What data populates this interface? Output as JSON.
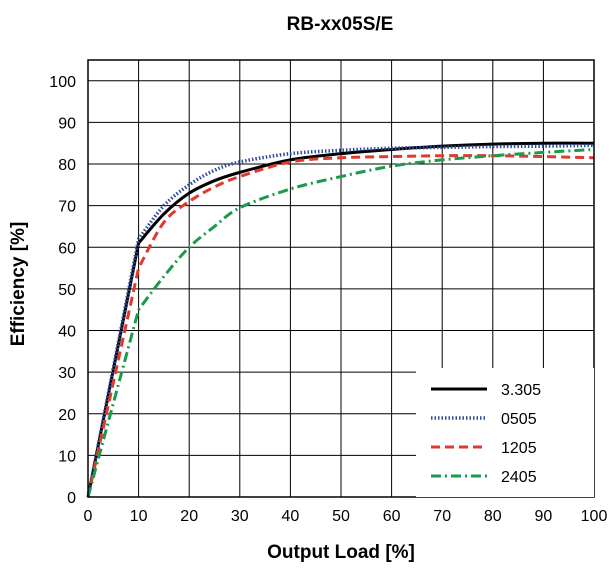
{
  "chart_data": {
    "type": "line",
    "title": "RB-xx05S/E",
    "xlabel": "Output Load [%]",
    "ylabel": "Efficiency [%]",
    "xlim": [
      0,
      100
    ],
    "ylim": [
      0,
      105
    ],
    "xticks": [
      0,
      10,
      20,
      30,
      40,
      50,
      60,
      70,
      80,
      90,
      100
    ],
    "yticks": [
      0,
      10,
      20,
      30,
      40,
      50,
      60,
      70,
      80,
      90,
      100
    ],
    "grid": true,
    "legend_position": "bottom-right",
    "series": [
      {
        "name": "3.305",
        "color": "#000000",
        "style": "solid",
        "x": [
          0,
          10,
          15,
          20,
          25,
          30,
          40,
          50,
          60,
          70,
          80,
          90,
          100
        ],
        "y": [
          0,
          61,
          68,
          73,
          76,
          78,
          81,
          82.5,
          83.5,
          84.3,
          84.8,
          85,
          85
        ]
      },
      {
        "name": "0505",
        "color": "#2b4aa0",
        "style": "dotted",
        "x": [
          0,
          10,
          15,
          20,
          25,
          30,
          40,
          50,
          60,
          70,
          80,
          90,
          100
        ],
        "y": [
          0,
          62,
          70,
          75,
          78.5,
          80.5,
          82.5,
          83.3,
          83.8,
          84,
          84.2,
          84.3,
          84.5
        ]
      },
      {
        "name": "1205",
        "color": "#e03a2c",
        "style": "dashed",
        "x": [
          0,
          10,
          15,
          20,
          25,
          30,
          40,
          50,
          60,
          70,
          80,
          90,
          100
        ],
        "y": [
          0,
          55,
          66,
          71,
          74.5,
          77,
          80.5,
          81.5,
          81.8,
          82,
          82,
          81.8,
          81.5
        ]
      },
      {
        "name": "2405",
        "color": "#1a9a4a",
        "style": "dashdot",
        "x": [
          0,
          10,
          15,
          20,
          25,
          30,
          40,
          50,
          60,
          70,
          80,
          90,
          100
        ],
        "y": [
          0,
          45,
          53,
          60,
          65,
          69.5,
          74,
          77,
          79.5,
          81,
          82,
          82.8,
          83.5
        ]
      }
    ]
  }
}
